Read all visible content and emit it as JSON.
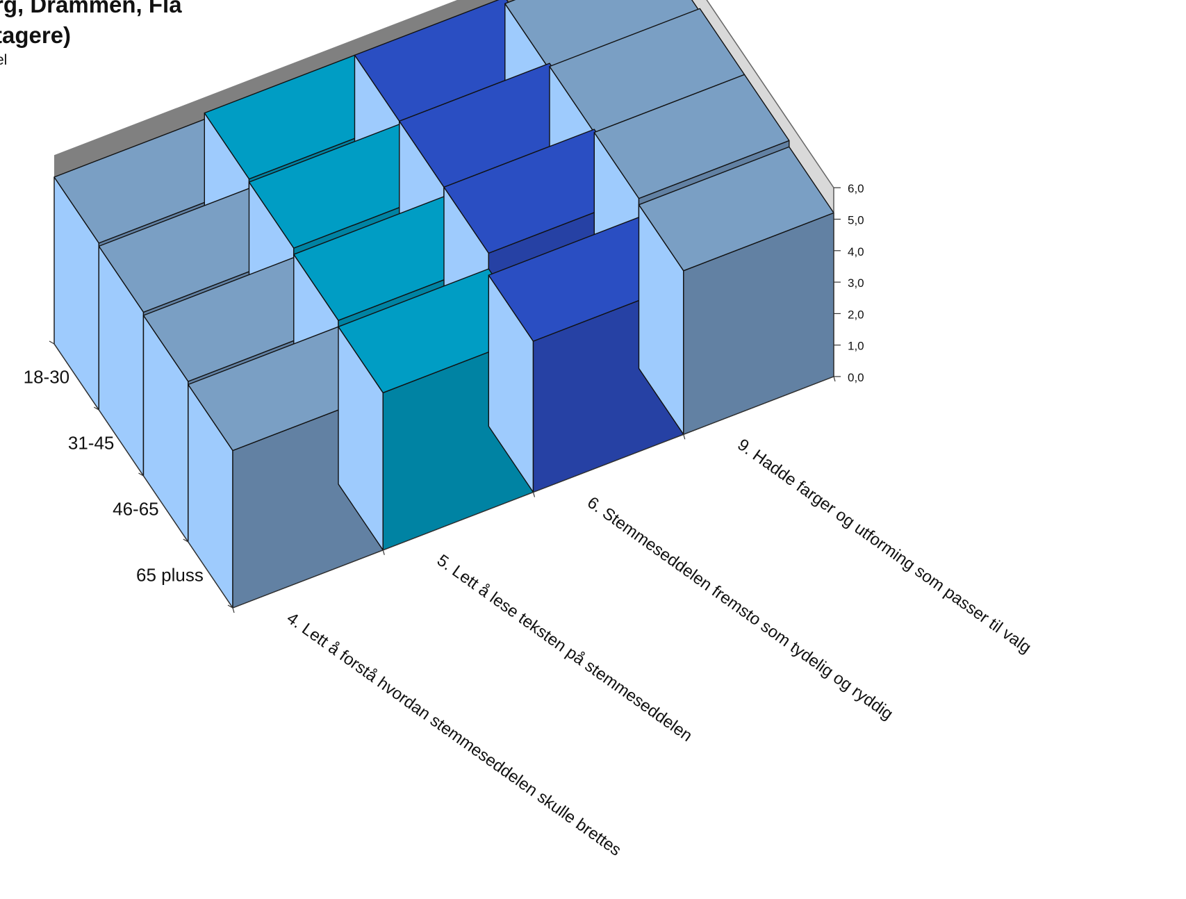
{
  "title_lines": [
    "rg, Drammen, Fla",
    "tagere)"
  ],
  "subtitle": "el",
  "chart_data": {
    "type": "bar",
    "subtype": "3d-grid-column",
    "title": "",
    "categories": [
      "4. Lett å forstå hvordan stemmeseddelen skulle brettes",
      "5. Lett å lese teksten på stemmeseddelen",
      "6. Stemmeseddelen fremsto som tydelig og ryddig",
      "9. Hadde farger og utforming som passer til valg"
    ],
    "depth_categories": [
      "18-30",
      "31-45",
      "46-65",
      "65 pluss"
    ],
    "series": [
      {
        "name": "18-30",
        "values": [
          5.3,
          5.5,
          5.5,
          5.3
        ]
      },
      {
        "name": "31-45",
        "values": [
          5.2,
          5.4,
          5.5,
          5.4
        ]
      },
      {
        "name": "46-65",
        "values": [
          5.1,
          5.2,
          5.5,
          5.4
        ]
      },
      {
        "name": "65 pluss",
        "values": [
          5.0,
          5.0,
          4.8,
          5.2
        ]
      }
    ],
    "value_axis": {
      "min": 0,
      "max": 6,
      "major": 1,
      "tick_labels": [
        "0,0",
        "1,0",
        "2,0",
        "3,0",
        "4,0",
        "5,0",
        "6,0"
      ]
    },
    "grid": false,
    "legend": "none",
    "colors": {
      "categories": [
        "#7a9fc4",
        "#009dc4",
        "#2a4ec2",
        "#7a9fc4"
      ],
      "front_faces": [
        "#6281a3",
        "#0083a3",
        "#2641a4",
        "#6281a3"
      ],
      "left_side": "#9ecbfd",
      "floor": "#d9d9d9",
      "back_wall": "#808080",
      "outline": "#111111"
    }
  }
}
